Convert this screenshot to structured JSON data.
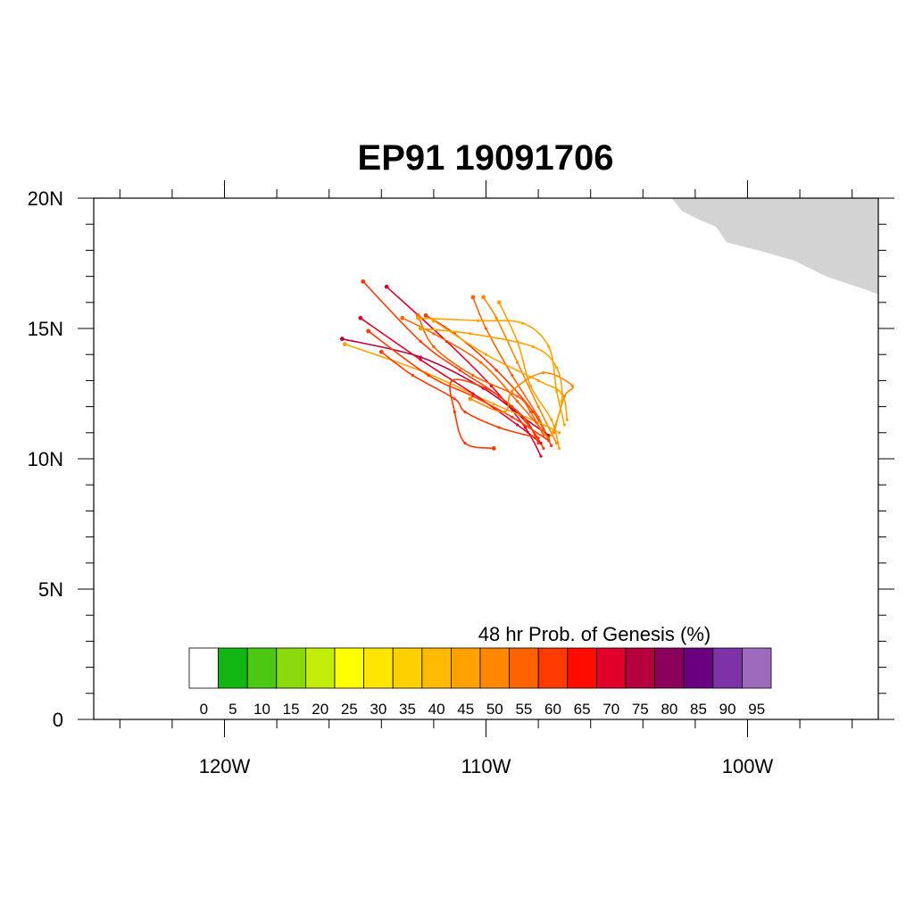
{
  "map": {
    "title": "EP91 19091706",
    "lon_range": [
      -125,
      -95
    ],
    "lat_range": [
      0,
      20
    ],
    "lat_ticks": [
      {
        "value": 20,
        "label": "20N"
      },
      {
        "value": 15,
        "label": "15N"
      },
      {
        "value": 10,
        "label": "10N"
      },
      {
        "value": 5,
        "label": "5N"
      },
      {
        "value": 0,
        "label": "0"
      }
    ],
    "lon_ticks": [
      {
        "value": -120,
        "label": "120W"
      },
      {
        "value": -110,
        "label": "110W"
      },
      {
        "value": -100,
        "label": "100W"
      }
    ],
    "land_color": "#d3d3d3",
    "land_polygon": [
      [
        -102.9,
        20
      ],
      [
        -102.5,
        19.5
      ],
      [
        -101.9,
        19.2
      ],
      [
        -101.2,
        18.9
      ],
      [
        -100.8,
        18.3
      ],
      [
        -99.6,
        18.0
      ],
      [
        -98.2,
        17.6
      ],
      [
        -97.0,
        17.0
      ],
      [
        -95.5,
        16.5
      ],
      [
        -95,
        16.3
      ],
      [
        -95,
        20
      ]
    ],
    "land_polygon_2": [
      [
        -95.8,
        20
      ],
      [
        -95.6,
        19.4
      ],
      [
        -95.1,
        18.8
      ],
      [
        -95,
        18.75
      ],
      [
        -95,
        20
      ]
    ]
  },
  "colorbar": {
    "title": "48 hr Prob. of Genesis (%)",
    "levels": [
      "0",
      "5",
      "10",
      "15",
      "20",
      "25",
      "30",
      "35",
      "40",
      "45",
      "50",
      "55",
      "60",
      "65",
      "70",
      "75",
      "80",
      "85",
      "90",
      "95"
    ],
    "colors": [
      "#ffffff",
      "#12b612",
      "#4cc712",
      "#89d90c",
      "#c3ee0a",
      "#ffff00",
      "#ffe600",
      "#ffd000",
      "#ffba00",
      "#ffa200",
      "#ff8800",
      "#ff6200",
      "#ff3a00",
      "#ff0c00",
      "#e0002a",
      "#b4003c",
      "#8a005a",
      "#6a0080",
      "#7c32a6",
      "#9c6bbd"
    ]
  },
  "chart_data": {
    "type": "map-tracks",
    "title": "EP91 19091706",
    "xlabel": "",
    "ylabel": "",
    "xlim": [
      -125,
      -95
    ],
    "ylim": [
      0,
      20
    ],
    "tracks": [
      {
        "color": "#ff3a00",
        "points": [
          [
            -107.8,
            10.4
          ],
          [
            -108.3,
            11.2
          ],
          [
            -109.5,
            12.4
          ],
          [
            -111.0,
            13.4
          ],
          [
            -112.5,
            14.5
          ],
          [
            -114.7,
            16.8
          ]
        ]
      },
      {
        "color": "#e0002a",
        "points": [
          [
            -107.9,
            10.1
          ],
          [
            -108.5,
            11.2
          ],
          [
            -109.8,
            12.8
          ],
          [
            -111.5,
            14.5
          ],
          [
            -113.8,
            16.6
          ]
        ]
      },
      {
        "color": "#ff3a00",
        "points": [
          [
            -107.5,
            10.5
          ],
          [
            -108.2,
            11.8
          ],
          [
            -109.6,
            13.4
          ],
          [
            -111.2,
            14.8
          ],
          [
            -112.3,
            15.5
          ]
        ]
      },
      {
        "color": "#ff6200",
        "points": [
          [
            -107.6,
            10.7
          ],
          [
            -108.0,
            11.6
          ],
          [
            -109.0,
            13.2
          ],
          [
            -110.0,
            15.0
          ],
          [
            -110.5,
            16.2
          ]
        ]
      },
      {
        "color": "#ff8800",
        "points": [
          [
            -107.3,
            10.6
          ],
          [
            -108.0,
            12.0
          ],
          [
            -108.8,
            13.7
          ],
          [
            -109.6,
            15.4
          ],
          [
            -110.1,
            16.2
          ]
        ]
      },
      {
        "color": "#ffa200",
        "points": [
          [
            -107.2,
            10.4
          ],
          [
            -107.5,
            11.5
          ],
          [
            -108.3,
            12.8
          ],
          [
            -108.8,
            14.5
          ],
          [
            -109.5,
            16.0
          ]
        ]
      },
      {
        "color": "#b4003c",
        "points": [
          [
            -107.6,
            10.9
          ],
          [
            -108.6,
            11.6
          ],
          [
            -110.1,
            12.7
          ],
          [
            -112.5,
            13.9
          ],
          [
            -115.5,
            14.6
          ]
        ]
      },
      {
        "color": "#ffa200",
        "points": [
          [
            -107.2,
            11.0
          ],
          [
            -108.0,
            11.4
          ],
          [
            -109.7,
            12.1
          ],
          [
            -112.3,
            13.3
          ],
          [
            -115.4,
            14.4
          ]
        ]
      },
      {
        "color": "#e0002a",
        "points": [
          [
            -107.9,
            10.6
          ],
          [
            -108.8,
            11.3
          ],
          [
            -110.5,
            12.5
          ],
          [
            -112.5,
            13.8
          ],
          [
            -114.8,
            15.4
          ]
        ]
      },
      {
        "color": "#ff3a00",
        "points": [
          [
            -107.6,
            10.7
          ],
          [
            -109.0,
            11.6
          ],
          [
            -110.5,
            12.4
          ],
          [
            -112.2,
            13.2
          ],
          [
            -114.5,
            14.9
          ]
        ]
      },
      {
        "color": "#ff3a00",
        "points": [
          [
            -108.0,
            10.8
          ],
          [
            -109.5,
            11.2
          ],
          [
            -110.8,
            11.8
          ],
          [
            -111.2,
            12.3
          ],
          [
            -112.8,
            13.2
          ],
          [
            -114.0,
            14.1
          ]
        ]
      },
      {
        "color": "#ff6200",
        "points": [
          [
            -107.6,
            10.8
          ],
          [
            -108.8,
            12.2
          ],
          [
            -110.2,
            13.7
          ],
          [
            -112.0,
            14.8
          ],
          [
            -113.2,
            15.4
          ]
        ]
      },
      {
        "color": "#ffa200",
        "points": [
          [
            -106.9,
            11.5
          ],
          [
            -107.1,
            12.5
          ],
          [
            -108.0,
            13.0
          ],
          [
            -110.0,
            14.0
          ],
          [
            -112.0,
            15.3
          ]
        ]
      },
      {
        "color": "#ff3a00",
        "points": [
          [
            -108.0,
            10.6
          ],
          [
            -108.4,
            11.4
          ],
          [
            -109.0,
            12.0
          ],
          [
            -110.0,
            12.7
          ],
          [
            -111.3,
            13.0
          ],
          [
            -111.2,
            11.8
          ],
          [
            -110.8,
            10.6
          ],
          [
            -109.7,
            10.4
          ]
        ]
      },
      {
        "color": "#ff6200",
        "points": [
          [
            -107.8,
            10.9
          ],
          [
            -108.3,
            11.8
          ],
          [
            -108.8,
            12.4
          ],
          [
            -110.5,
            13.2
          ],
          [
            -112.0,
            14.3
          ],
          [
            -112.6,
            15.5
          ]
        ]
      },
      {
        "color": "#ff8800",
        "points": [
          [
            -107.4,
            11.0
          ],
          [
            -107.0,
            12.4
          ],
          [
            -106.7,
            12.8
          ],
          [
            -107.8,
            13.3
          ],
          [
            -109.0,
            12.6
          ],
          [
            -109.3,
            11.8
          ],
          [
            -110.6,
            12.3
          ]
        ]
      },
      {
        "color": "#ffa200",
        "points": [
          [
            -107.5,
            10.9
          ],
          [
            -107.1,
            12.2
          ],
          [
            -107.3,
            13.5
          ],
          [
            -108.2,
            14.3
          ],
          [
            -110.6,
            14.8
          ],
          [
            -112.5,
            15.0
          ]
        ]
      },
      {
        "color": "#ffa200",
        "points": [
          [
            -107.0,
            11.3
          ],
          [
            -107.3,
            12.6
          ],
          [
            -107.6,
            14.3
          ],
          [
            -108.6,
            15.2
          ],
          [
            -110.3,
            15.3
          ],
          [
            -112.6,
            15.4
          ]
        ]
      }
    ]
  }
}
